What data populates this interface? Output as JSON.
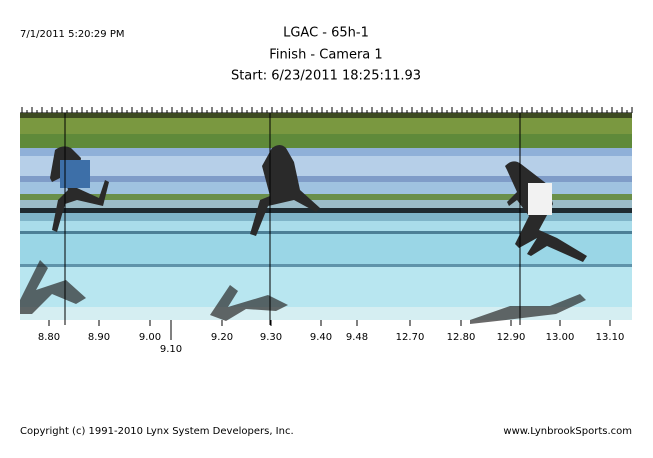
{
  "header": {
    "timestamp": "7/1/2011 5:20:29 PM",
    "title": "LGAC - 65h-1",
    "subtitle": "Finish - Camera 1",
    "start": "Start: 6/23/2011 18:25:11.93"
  },
  "time_scale": {
    "labels": [
      "8.80",
      "8.90",
      "9.00",
      "9.10",
      "9.20",
      "9.30",
      "9.40",
      "9.48",
      "12.70",
      "12.80",
      "12.90",
      "13.00",
      "13.10"
    ]
  },
  "footer": {
    "copyright": "Copyright (c) 1991-2010 Lynx System Developers, Inc.",
    "website": "www.LynbrookSports.com"
  }
}
